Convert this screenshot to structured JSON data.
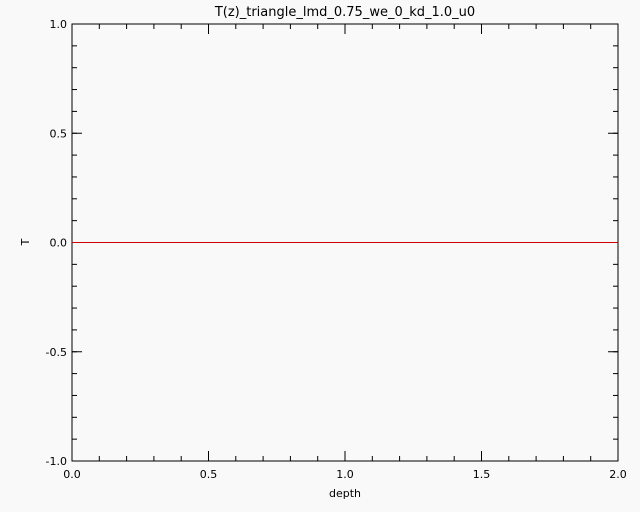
{
  "chart_data": {
    "type": "line",
    "title": "T(z)_triangle_lmd_0.75_we_0_kd_1.0_u0",
    "xlabel": "depth",
    "ylabel": "T",
    "xlim": [
      0.0,
      2.0
    ],
    "ylim": [
      -1.0,
      1.0
    ],
    "x_ticks": [
      {
        "value": 0.0,
        "label": "0.0"
      },
      {
        "value": 0.5,
        "label": "0.5"
      },
      {
        "value": 1.0,
        "label": "1.0"
      },
      {
        "value": 1.5,
        "label": "1.5"
      },
      {
        "value": 2.0,
        "label": "2.0"
      }
    ],
    "y_ticks": [
      {
        "value": -1.0,
        "label": "-1.0"
      },
      {
        "value": -0.5,
        "label": "-0.5"
      },
      {
        "value": 0.0,
        "label": "0.0"
      },
      {
        "value": 0.5,
        "label": "0.5"
      },
      {
        "value": 1.0,
        "label": "1.0"
      }
    ],
    "x_minor_step": 0.1,
    "y_minor_step": 0.1,
    "grid": false,
    "series": [
      {
        "color": "#cc0000",
        "x": [
          0.0,
          2.0
        ],
        "y": [
          0.0,
          0.0
        ]
      }
    ]
  }
}
